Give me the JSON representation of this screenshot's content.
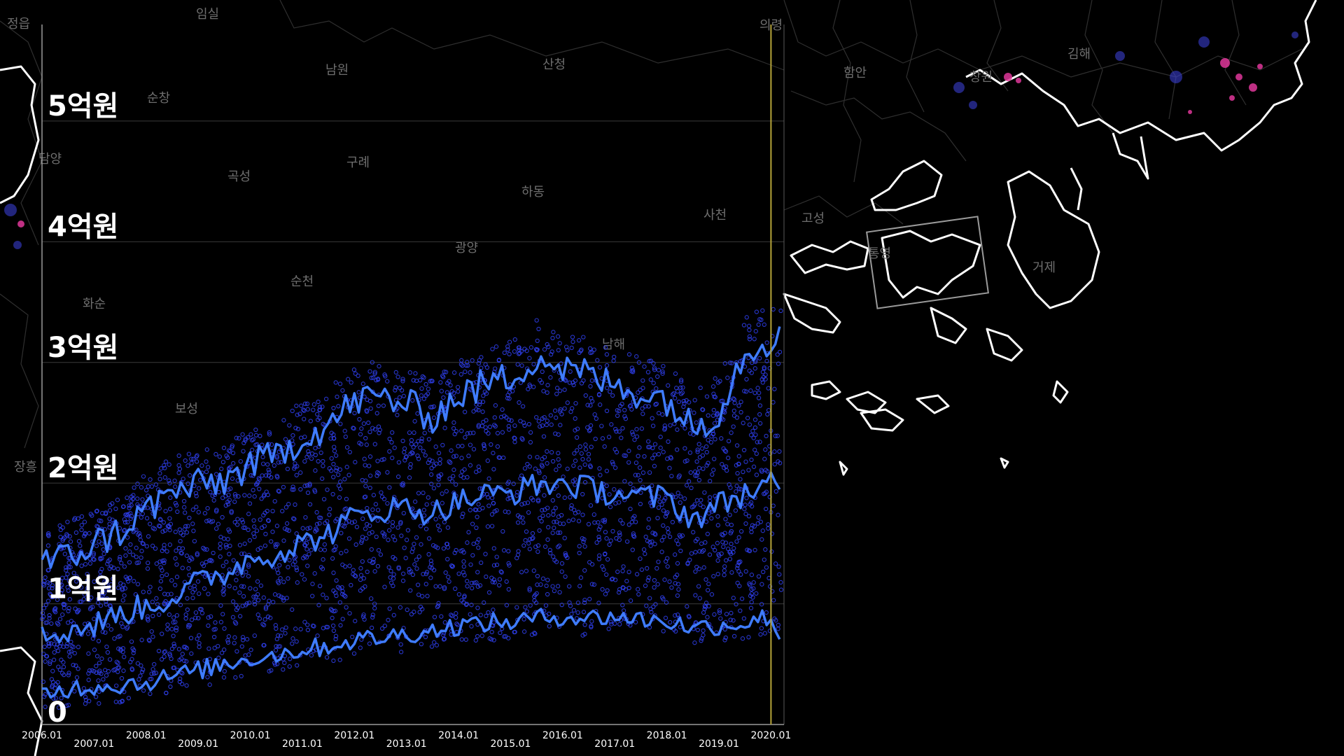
{
  "colors": {
    "background": "#000000",
    "coastline": "#ffffff",
    "boundary": "#2f2f2f",
    "place_label": "#6e6e6e",
    "point": "#2f3ff0",
    "line": "#3f7cff",
    "highlight_line": "#b5a33a",
    "hotspot": "#e0389a"
  },
  "map": {
    "place_labels": [
      "정읍",
      "임실",
      "의령",
      "남원",
      "산청",
      "순창",
      "담양",
      "곡성",
      "구례",
      "하동",
      "사천",
      "광양",
      "순천",
      "화순",
      "보성",
      "장흥",
      "남해",
      "고성",
      "통영",
      "거제",
      "함안",
      "창원",
      "김해"
    ]
  },
  "chart_data": {
    "type": "scatter",
    "title": "",
    "xlabel": "",
    "ylabel": "",
    "x_domain": [
      "2006-01",
      "2020-04"
    ],
    "ylim": [
      0,
      5.8
    ],
    "y_unit": "억원",
    "grid": true,
    "highlight_x": "2020-01",
    "yticks": [
      {
        "value": 0,
        "label": "0"
      },
      {
        "value": 1,
        "label": "1억원"
      },
      {
        "value": 2,
        "label": "2억원"
      },
      {
        "value": 3,
        "label": "3억원"
      },
      {
        "value": 4,
        "label": "4억원"
      },
      {
        "value": 5,
        "label": "5억원"
      }
    ],
    "xticks": [
      "2006.01",
      "2007.01",
      "2008.01",
      "2009.01",
      "2010.01",
      "2011.01",
      "2012.01",
      "2013.01",
      "2014.01",
      "2015.01",
      "2016.01",
      "2017.01",
      "2018.01",
      "2019.01",
      "2020.01"
    ],
    "series": [
      {
        "x": [
          "2006-01",
          "2006-07",
          "2007-01",
          "2007-07",
          "2008-01",
          "2008-07",
          "2009-01",
          "2009-07",
          "2010-01",
          "2010-07",
          "2011-01",
          "2011-07",
          "2012-01",
          "2012-07",
          "2013-01",
          "2013-07",
          "2014-01",
          "2014-07",
          "2015-01",
          "2015-07",
          "2016-01",
          "2016-07",
          "2017-01",
          "2017-07",
          "2018-01",
          "2018-07",
          "2019-01",
          "2019-07",
          "2020-01",
          "2020-03"
        ],
        "y": [
          1.35,
          1.38,
          1.5,
          1.6,
          1.78,
          1.92,
          1.98,
          2.02,
          2.15,
          2.22,
          2.38,
          2.48,
          2.68,
          2.72,
          2.65,
          2.55,
          2.72,
          2.82,
          2.88,
          3.05,
          2.95,
          2.9,
          2.8,
          2.75,
          2.7,
          2.45,
          2.6,
          3.1,
          3.2,
          3.3
        ]
      },
      {
        "x": [
          "2006-01",
          "2006-07",
          "2007-01",
          "2007-07",
          "2008-01",
          "2008-07",
          "2009-01",
          "2009-07",
          "2010-01",
          "2010-07",
          "2011-01",
          "2011-07",
          "2012-01",
          "2012-07",
          "2013-01",
          "2013-07",
          "2014-01",
          "2014-07",
          "2015-01",
          "2015-07",
          "2016-01",
          "2016-07",
          "2017-01",
          "2017-07",
          "2018-01",
          "2018-07",
          "2019-01",
          "2019-07",
          "2020-01",
          "2020-03"
        ],
        "y": [
          0.72,
          0.78,
          0.82,
          0.92,
          0.98,
          1.05,
          1.18,
          1.25,
          1.38,
          1.42,
          1.5,
          1.58,
          1.72,
          1.78,
          1.8,
          1.75,
          1.85,
          1.9,
          1.92,
          1.98,
          2.0,
          1.95,
          1.92,
          1.88,
          1.88,
          1.7,
          1.82,
          1.92,
          1.98,
          1.95
        ]
      },
      {
        "x": [
          "2006-01",
          "2006-07",
          "2007-01",
          "2007-07",
          "2008-01",
          "2008-07",
          "2009-01",
          "2009-07",
          "2010-01",
          "2010-07",
          "2011-01",
          "2011-07",
          "2012-01",
          "2012-07",
          "2013-01",
          "2013-07",
          "2014-01",
          "2014-07",
          "2015-01",
          "2015-07",
          "2016-01",
          "2016-07",
          "2017-01",
          "2017-07",
          "2018-01",
          "2018-07",
          "2019-01",
          "2019-07",
          "2020-01",
          "2020-03"
        ],
        "y": [
          0.25,
          0.3,
          0.32,
          0.33,
          0.35,
          0.4,
          0.45,
          0.5,
          0.55,
          0.58,
          0.62,
          0.65,
          0.7,
          0.72,
          0.75,
          0.78,
          0.82,
          0.84,
          0.85,
          0.88,
          0.9,
          0.88,
          0.9,
          0.87,
          0.86,
          0.8,
          0.82,
          0.84,
          0.9,
          0.72
        ]
      }
    ],
    "points": {
      "description_free": true,
      "count": 3200
    }
  }
}
